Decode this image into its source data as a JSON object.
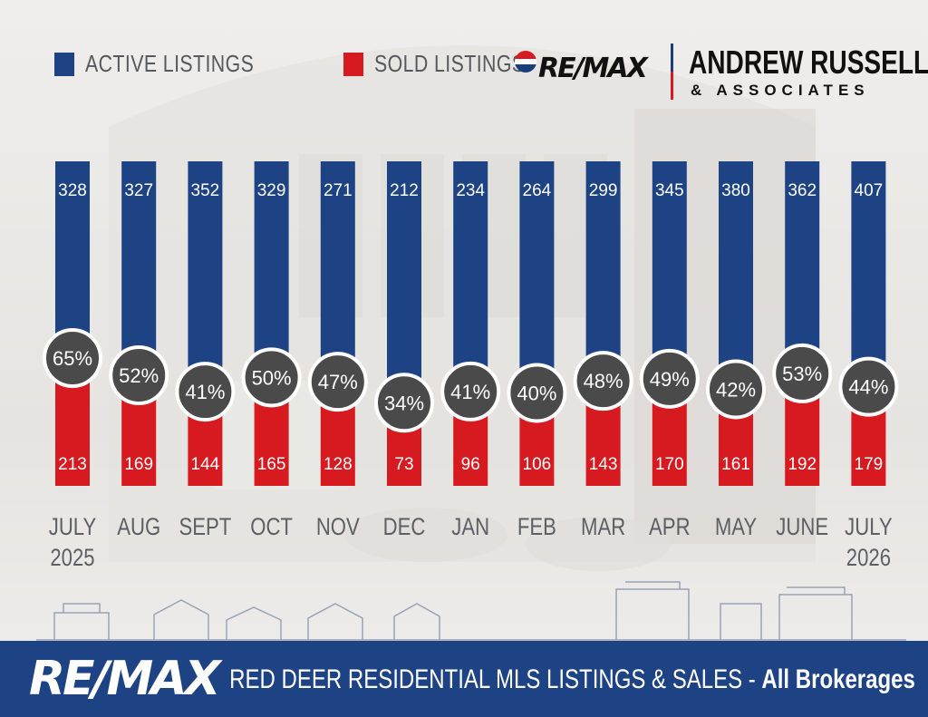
{
  "colors": {
    "active": "#1e4384",
    "sold": "#d71920",
    "circle": "#4a4a4a",
    "circle_ring": "#ffffff",
    "month_text": "#5c5f63",
    "footer": "#1e4384"
  },
  "legend": {
    "active_label": "ACTIVE LISTINGS",
    "sold_label": "SOLD LISTINGS"
  },
  "brand": {
    "remax_small": "RE/MAX",
    "name": "ANDREW RUSSELL",
    "associates": "& ASSOCIATES"
  },
  "footer": {
    "logo": "RE/MAX",
    "title_main": "RED DEER RESIDENTIAL MLS LISTINGS & SALES - ",
    "title_bold": "All Brokerages"
  },
  "chart_data": {
    "type": "bar",
    "categories": [
      [
        "JULY",
        "2025"
      ],
      [
        "AUG"
      ],
      [
        "SEPT"
      ],
      [
        "OCT"
      ],
      [
        "NOV"
      ],
      [
        "DEC"
      ],
      [
        "JAN"
      ],
      [
        "FEB"
      ],
      [
        "MAR"
      ],
      [
        "APR"
      ],
      [
        "MAY"
      ],
      [
        "JUNE"
      ],
      [
        "JULY",
        "2026"
      ]
    ],
    "series": [
      {
        "name": "ACTIVE LISTINGS",
        "values": [
          328,
          327,
          352,
          329,
          271,
          212,
          234,
          264,
          299,
          345,
          380,
          362,
          407
        ]
      },
      {
        "name": "SOLD LISTINGS",
        "values": [
          213,
          169,
          144,
          165,
          128,
          73,
          96,
          106,
          143,
          170,
          161,
          192,
          179
        ]
      }
    ],
    "ratio_labels": [
      "65%",
      "52%",
      "41%",
      "50%",
      "47%",
      "34%",
      "41%",
      "40%",
      "48%",
      "49%",
      "42%",
      "53%",
      "44%"
    ],
    "legend_position": "top-left",
    "grid": false
  }
}
